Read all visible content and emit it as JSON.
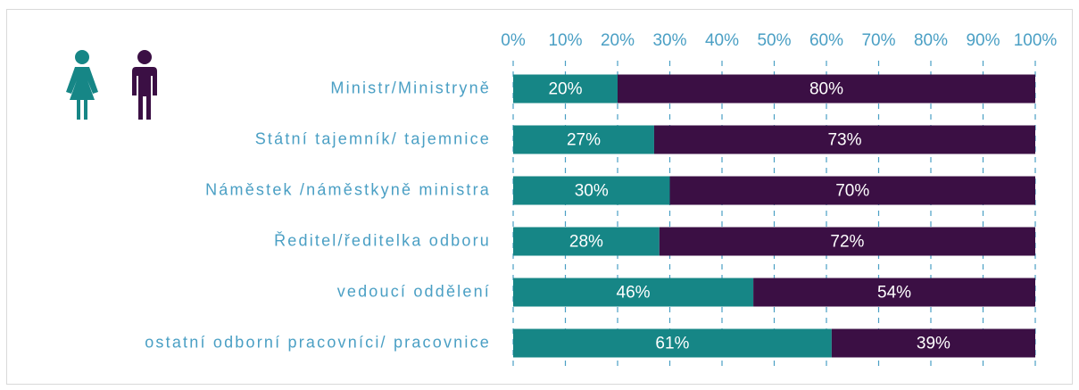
{
  "chart_data": {
    "type": "stacked-bar-horizontal",
    "categories": [
      "Ministr/Ministryně",
      "Státní tajemník/ tajemnice",
      "Náměstek /náměstkyně ministra",
      "Ředitel/ředitelka odboru",
      "vedoucí oddělení",
      "ostatní odborní pracovníci/ pracovnice"
    ],
    "series": [
      {
        "color": "#168686",
        "values": [
          20,
          27,
          30,
          28,
          46,
          61
        ],
        "value_labels": [
          "20%",
          "27%",
          "30%",
          "28%",
          "46%",
          "61%"
        ]
      },
      {
        "color": "#3b0f44",
        "values": [
          80,
          73,
          70,
          72,
          54,
          39
        ],
        "value_labels": [
          "80%",
          "73%",
          "70%",
          "72%",
          "54%",
          "39%"
        ]
      }
    ],
    "xlim": [
      0,
      100
    ],
    "xticks": [
      {
        "value": 0,
        "label": "0%"
      },
      {
        "value": 10,
        "label": "10%"
      },
      {
        "value": 20,
        "label": "20%"
      },
      {
        "value": 30,
        "label": "30%"
      },
      {
        "value": 40,
        "label": "40%"
      },
      {
        "value": 50,
        "label": "50%"
      },
      {
        "value": 60,
        "label": "60%"
      },
      {
        "value": 70,
        "label": "70%"
      },
      {
        "value": 80,
        "label": "80%"
      },
      {
        "value": 90,
        "label": "90%"
      },
      {
        "value": 100,
        "label": "100%"
      }
    ],
    "grid": true
  }
}
